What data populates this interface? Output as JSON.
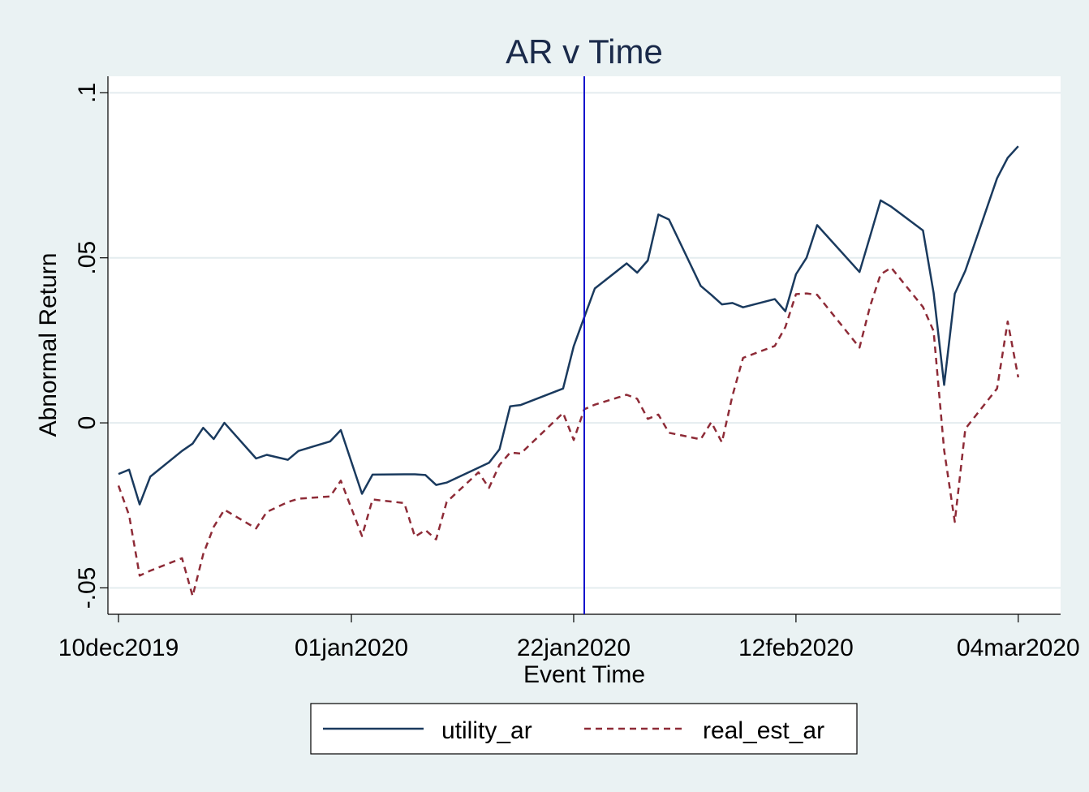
{
  "chart_data": {
    "type": "line",
    "title": "AR v Time",
    "xlabel": "Event Time",
    "ylabel": "Abnormal Return",
    "xlim": [
      "2019-12-09",
      "2020-03-08"
    ],
    "ylim": [
      -0.058,
      0.105
    ],
    "grid": true,
    "x_ticks": [
      "2019-12-10",
      "2020-01-01",
      "2020-01-22",
      "2020-02-12",
      "2020-03-04"
    ],
    "x_tick_labels": [
      "10dec2019",
      "01jan2020",
      "22jan2020",
      "12feb2020",
      "04mar2020"
    ],
    "y_ticks": [
      -0.05,
      0,
      0.05,
      0.1
    ],
    "y_tick_labels": [
      "-.05",
      "0",
      ".05",
      ".1"
    ],
    "event_line": {
      "x": "2020-01-23",
      "color": "#1414cc"
    },
    "legend_position": "bottom",
    "x": [
      "2019-12-10",
      "2019-12-11",
      "2019-12-12",
      "2019-12-13",
      "2019-12-16",
      "2019-12-17",
      "2019-12-18",
      "2019-12-19",
      "2019-12-20",
      "2019-12-23",
      "2019-12-24",
      "2019-12-26",
      "2019-12-27",
      "2019-12-30",
      "2019-12-31",
      "2020-01-02",
      "2020-01-03",
      "2020-01-06",
      "2020-01-07",
      "2020-01-08",
      "2020-01-09",
      "2020-01-10",
      "2020-01-13",
      "2020-01-14",
      "2020-01-15",
      "2020-01-16",
      "2020-01-17",
      "2020-01-21",
      "2020-01-22",
      "2020-01-23",
      "2020-01-24",
      "2020-01-27",
      "2020-01-28",
      "2020-01-29",
      "2020-01-30",
      "2020-01-31",
      "2020-02-03",
      "2020-02-04",
      "2020-02-05",
      "2020-02-06",
      "2020-02-07",
      "2020-02-10",
      "2020-02-11",
      "2020-02-12",
      "2020-02-13",
      "2020-02-14",
      "2020-02-18",
      "2020-02-19",
      "2020-02-20",
      "2020-02-21",
      "2020-02-24",
      "2020-02-25",
      "2020-02-26",
      "2020-02-27",
      "2020-02-28",
      "2020-03-02",
      "2020-03-03",
      "2020-03-04",
      "2020-03-05",
      "2020-03-06"
    ],
    "series": [
      {
        "name": "utility_ar",
        "color": "#1a3a5e",
        "dash": "solid",
        "values": [
          -0.0155,
          -0.0142,
          -0.0247,
          -0.0163,
          -0.0085,
          -0.0063,
          -0.0015,
          -0.0049,
          0.0,
          -0.0108,
          -0.0097,
          -0.0112,
          -0.0085,
          -0.0056,
          -0.0022,
          -0.0215,
          -0.0157,
          -0.0156,
          -0.0156,
          -0.0158,
          -0.0188,
          -0.0181,
          -0.0136,
          -0.0121,
          -0.008,
          0.005,
          0.0054,
          0.0104,
          0.0232,
          0.032,
          0.0407,
          0.0483,
          0.0455,
          0.0492,
          0.0631,
          0.0616,
          0.0415,
          0.0388,
          0.0359,
          0.0363,
          0.035,
          0.0375,
          0.0338,
          0.045,
          0.05,
          0.0599,
          0.0457,
          0.0565,
          0.0674,
          0.0655,
          0.0583,
          0.0394,
          0.0115,
          0.0391,
          0.0461,
          0.0741,
          0.0803,
          0.0838,
          null,
          null
        ]
      },
      {
        "name": "real_est_ar",
        "color": "#8e2b37",
        "dash": "dashed",
        "values": [
          -0.019,
          -0.028,
          -0.0463,
          -0.0448,
          -0.041,
          -0.0525,
          -0.0398,
          -0.0315,
          -0.0263,
          -0.032,
          -0.027,
          -0.024,
          -0.023,
          -0.0223,
          -0.0175,
          -0.0343,
          -0.0232,
          -0.0243,
          -0.0345,
          -0.0325,
          -0.0353,
          -0.024,
          -0.015,
          -0.0197,
          -0.0127,
          -0.009,
          -0.0093,
          0.003,
          -0.0052,
          0.0041,
          0.0055,
          0.0085,
          0.0073,
          0.0012,
          0.0025,
          -0.003,
          -0.005,
          0.0002,
          -0.0059,
          0.0082,
          0.0197,
          0.0233,
          0.029,
          0.039,
          0.0392,
          0.0388,
          0.0228,
          0.0353,
          0.045,
          0.047,
          0.0351,
          0.0278,
          -0.0083,
          -0.03,
          -0.0018,
          0.0104,
          0.0307,
          0.0138,
          null,
          null
        ]
      }
    ]
  }
}
